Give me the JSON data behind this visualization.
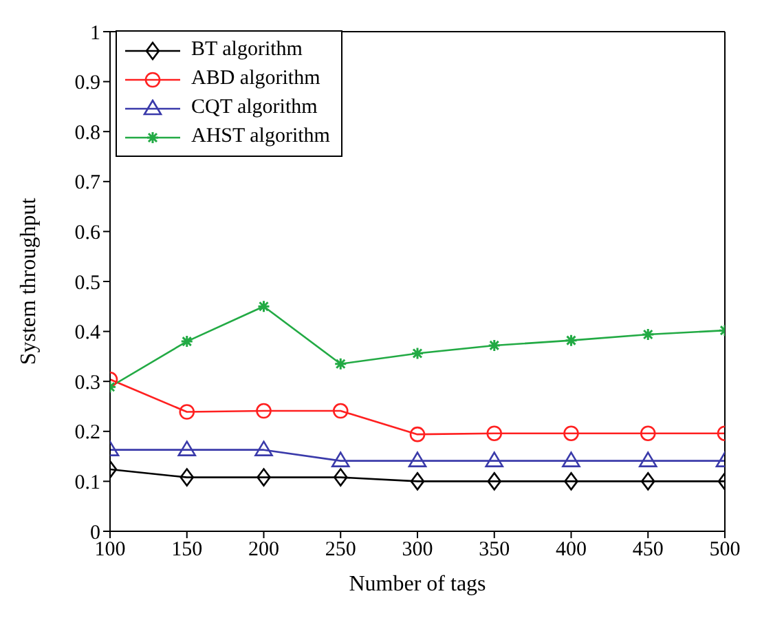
{
  "chart_data": {
    "type": "line",
    "xlabel": "Number of tags",
    "ylabel": "System throughput",
    "x": [
      100,
      150,
      200,
      250,
      300,
      350,
      400,
      450,
      500
    ],
    "series": [
      {
        "name": "BT algorithm",
        "color": "#000000",
        "marker": "diamond",
        "values": [
          0.124,
          0.108,
          0.108,
          0.108,
          0.1,
          0.1,
          0.1,
          0.1,
          0.1
        ]
      },
      {
        "name": "ABD algorithm",
        "color": "#ff2020",
        "marker": "circle",
        "values": [
          0.304,
          0.239,
          0.241,
          0.241,
          0.194,
          0.196,
          0.196,
          0.196,
          0.196
        ]
      },
      {
        "name": "CQT algorithm",
        "color": "#3a3aaa",
        "marker": "triangle",
        "values": [
          0.163,
          0.163,
          0.163,
          0.141,
          0.141,
          0.141,
          0.141,
          0.141,
          0.141
        ]
      },
      {
        "name": "AHST algorithm",
        "color": "#22aa44",
        "marker": "cross",
        "values": [
          0.289,
          0.38,
          0.45,
          0.335,
          0.356,
          0.372,
          0.382,
          0.394,
          0.402
        ]
      }
    ],
    "xlim": [
      100,
      500
    ],
    "xticks": [
      100,
      150,
      200,
      250,
      300,
      350,
      400,
      450,
      500
    ],
    "ylim": [
      0,
      1
    ],
    "yticks": [
      0,
      0.1,
      0.2,
      0.3,
      0.4,
      0.5,
      0.6,
      0.7,
      0.8,
      0.9,
      1
    ],
    "legend": "top left",
    "line_style": "solid"
  }
}
